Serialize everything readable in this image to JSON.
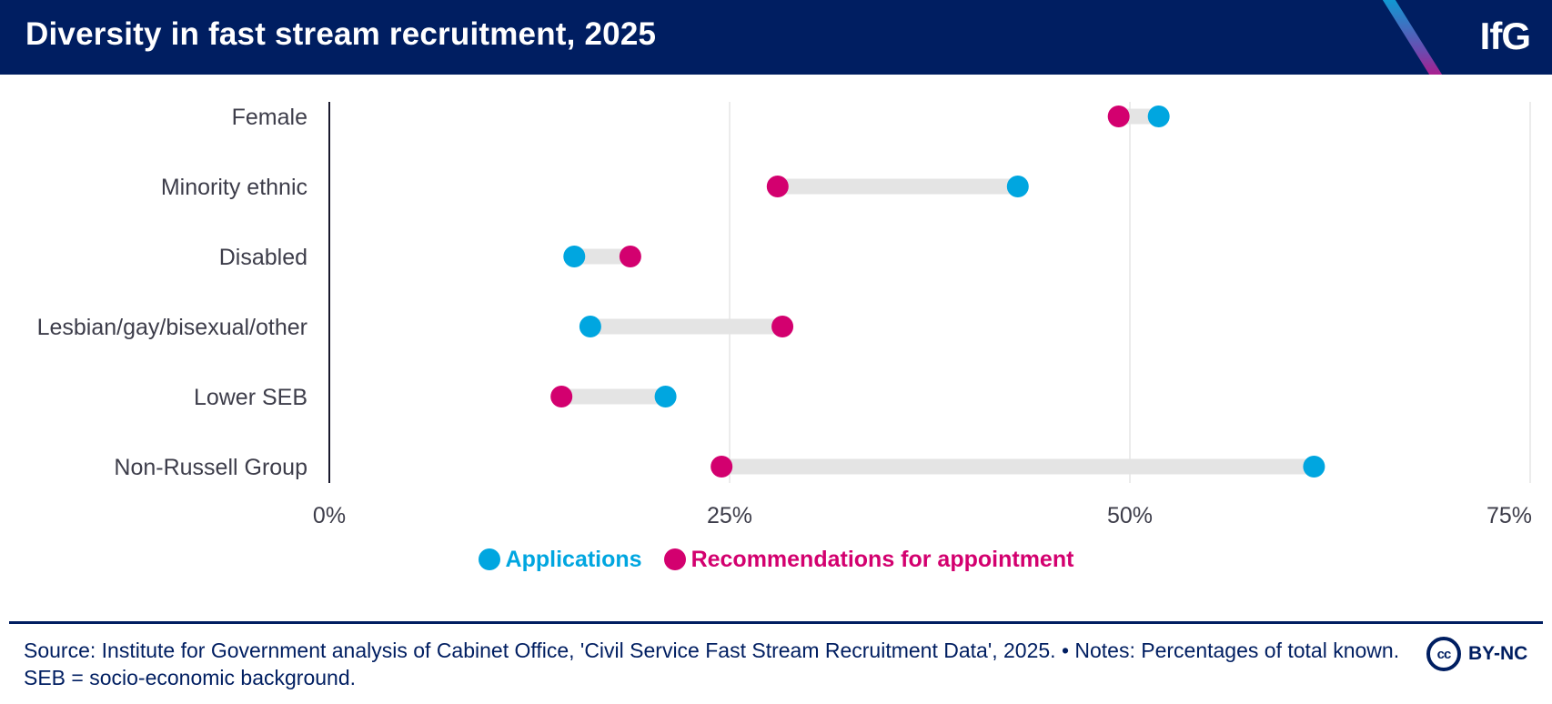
{
  "header": {
    "title": "Diversity in fast stream recruitment, 2025",
    "logo": "IfG"
  },
  "chart_data": {
    "type": "dumbbell",
    "title": "Diversity in fast stream recruitment, 2025",
    "categories": [
      "Female",
      "Minority ethnic",
      "Disabled",
      "Lesbian/gay/bisexual/other",
      "Lower SEB",
      "Non-Russell Group"
    ],
    "series": [
      {
        "name": "Applications",
        "color": "#00a6e0",
        "values": [
          51.8,
          43.0,
          15.3,
          16.3,
          21.0,
          61.5
        ]
      },
      {
        "name": "Recommendations for appointment",
        "color": "#d3006f",
        "values": [
          49.3,
          28.0,
          18.8,
          28.3,
          14.5,
          24.5
        ]
      }
    ],
    "xlim": [
      0,
      75
    ],
    "xticks": [
      0,
      25,
      50,
      75
    ],
    "xtick_labels": [
      "0%",
      "25%",
      "50%",
      "75%"
    ],
    "grid": true,
    "legend_position": "bottom-center"
  },
  "legend": {
    "applications_label": "Applications",
    "recommendations_label": "Recommendations for appointment"
  },
  "footer": {
    "source": "Source: Institute for Government analysis of Cabinet Office, 'Civil Service Fast Stream Recruitment Data', 2025. • Notes: Percentages of total known. SEB = socio-economic background.",
    "cc_icon_text": "cc",
    "license": "BY-NC"
  }
}
